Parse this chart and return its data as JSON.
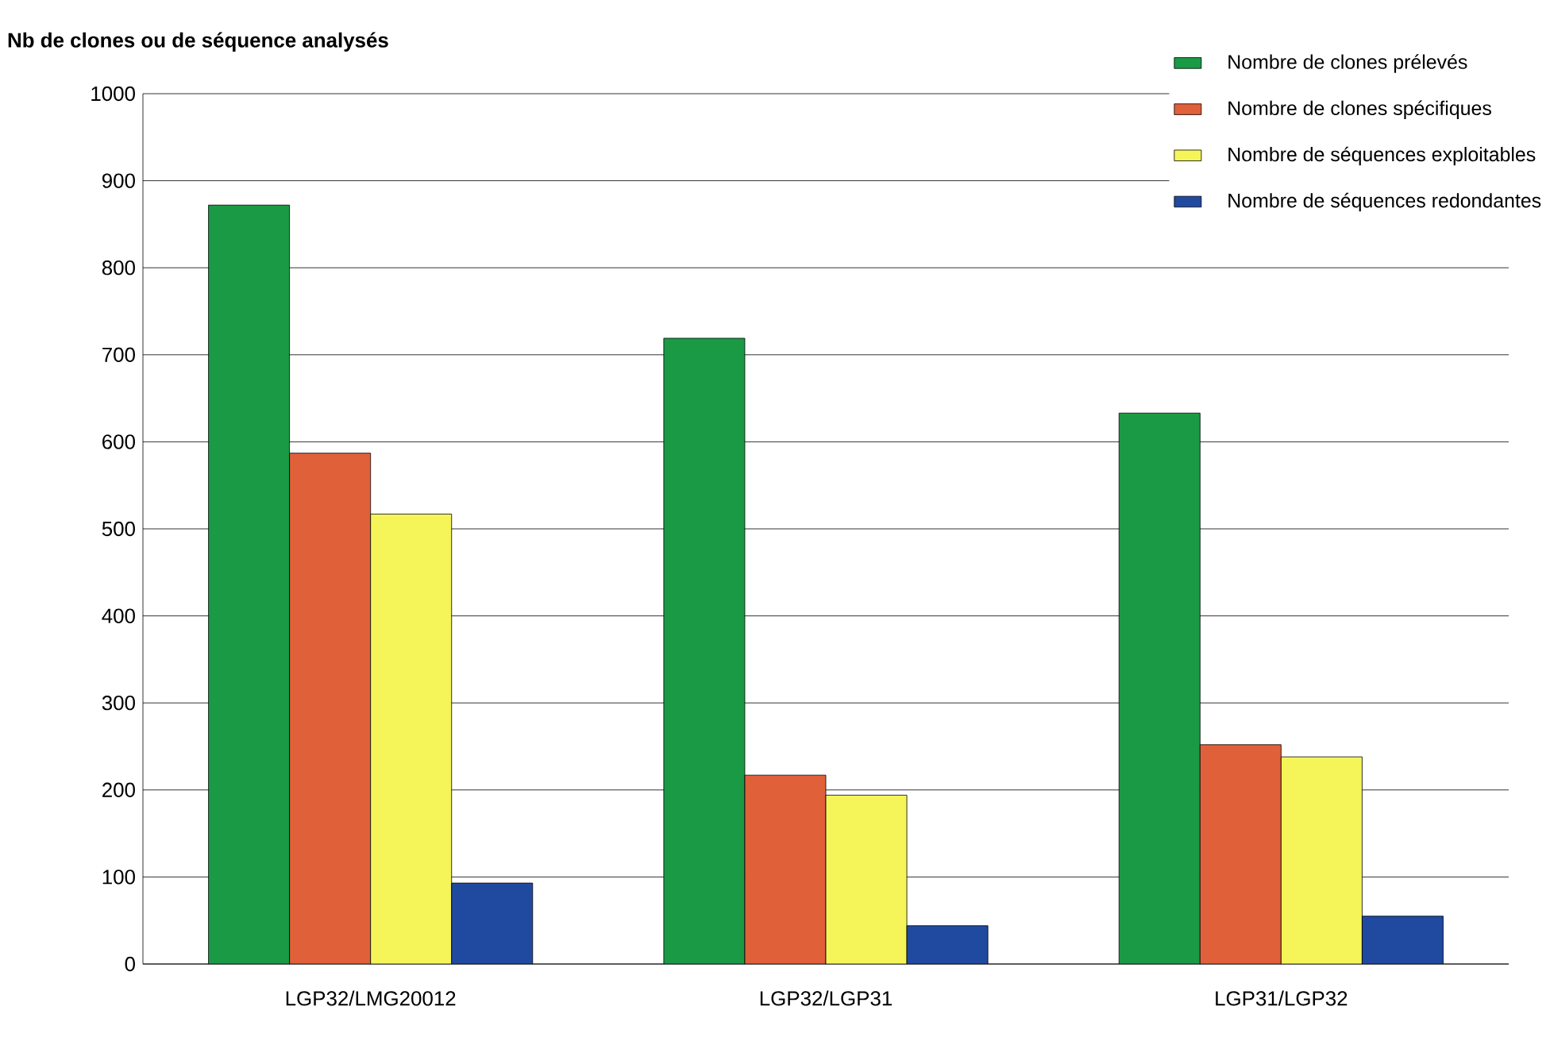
{
  "chart_data": {
    "type": "bar",
    "ylabel": "Nb de clones ou de séquence analysés",
    "categories": [
      "LGP32/LMG20012",
      "LGP32/LGP31",
      "LGP31/LGP32"
    ],
    "series": [
      {
        "name": "Nombre de clones prélevés",
        "color": "#1a9a45",
        "values": [
          872,
          719,
          633
        ]
      },
      {
        "name": "Nombre de clones spécifiques",
        "color": "#e0603a",
        "values": [
          587,
          217,
          252
        ]
      },
      {
        "name": "Nombre de séquences exploitables",
        "color": "#f5f55a",
        "values": [
          517,
          194,
          238
        ]
      },
      {
        "name": "Nombre de séquences redondantes",
        "color": "#1f4aa0",
        "values": [
          93,
          44,
          55
        ]
      }
    ],
    "ylim": [
      0,
      1000
    ],
    "yticks": [
      0,
      100,
      200,
      300,
      400,
      500,
      600,
      700,
      800,
      900,
      1000
    ],
    "grid": "y",
    "legend": "top right"
  }
}
